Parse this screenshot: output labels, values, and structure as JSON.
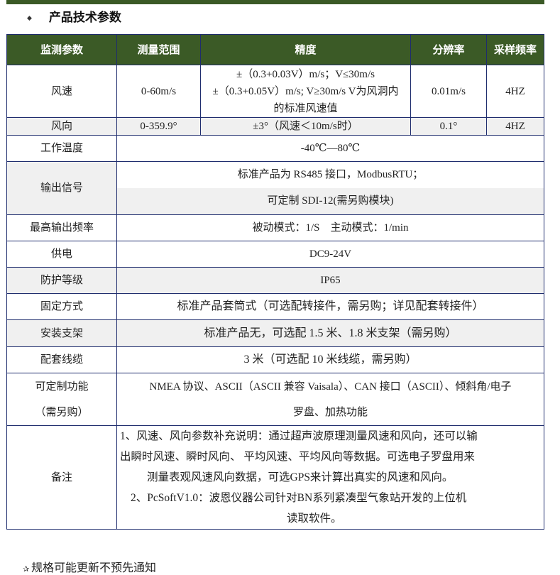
{
  "section_title": "产品技术参数",
  "header": [
    "监测参数",
    "测量范围",
    "精度",
    "分辨率",
    "采样频率"
  ],
  "wind_speed": {
    "param": "风速",
    "range": "0-60m/s",
    "accuracy": [
      "±（0.3+0.03V）m/s；V≤30m/s",
      "±（0.3+0.05V）m/s; V≥30m/s V为风洞内",
      "的标准风速值"
    ],
    "resolution": "0.01m/s",
    "rate": "4HZ"
  },
  "wind_dir": {
    "param": "风向",
    "range": "0-359.9°",
    "accuracy": "±3°（风速＜10m/s时）",
    "resolution": "0.1°",
    "rate": "4HZ"
  },
  "rows": {
    "temp": {
      "label": "工作温度",
      "value": "-40℃—80℃"
    },
    "output": {
      "label": "输出信号",
      "value1": "标准产品为 RS485 接口，ModbusRTU；",
      "value2": "可定制 SDI-12(需另购模块)"
    },
    "freq": {
      "label": "最高输出频率",
      "value": "被动模式：1/S　主动模式：1/min"
    },
    "power": {
      "label": "供电",
      "value": "DC9-24V"
    },
    "ip": {
      "label": "防护等级",
      "value": "IP65"
    },
    "mount": {
      "label": "固定方式",
      "value": "标准产品套筒式（可选配转接件，需另购；详见配套转接件）"
    },
    "bracket": {
      "label": "安装支架",
      "value": "标准产品无，可选配 1.5 米、1.8 米支架（需另购）"
    },
    "cable": {
      "label": "配套线缆",
      "value": "3 米（可选配 10 米线缆，需另购）"
    },
    "custom": {
      "label1": "可定制功能",
      "label2": "（需另购）",
      "value1": "NMEA 协议、ASCII（ASCII 兼容 Vaisala）、CAN 接口（ASCII）、倾斜角/电子",
      "value2": "罗盘、加热功能"
    },
    "notes": {
      "label": "备注",
      "lines": [
        "1、风速、风向参数补充说明：通过超声波原理测量风速和风向，还可以输",
        "出瞬时风速、瞬时风向、 平均风速、平均风向等数据。可选电子罗盘用来",
        "测量表观风速风向数据，可选GPS来计算出真实的风速和风向。",
        "2、PcSoftV1.0：波恩仪器公司针对BN系列紧凑型气象站开发的上位机",
        "读取软件。"
      ]
    }
  },
  "footer": "规格可能更新不预先通知",
  "colors": {
    "header_bg": "#3b5a26",
    "border": "#1f2d6e",
    "alt_row": "#f0f0f0"
  }
}
